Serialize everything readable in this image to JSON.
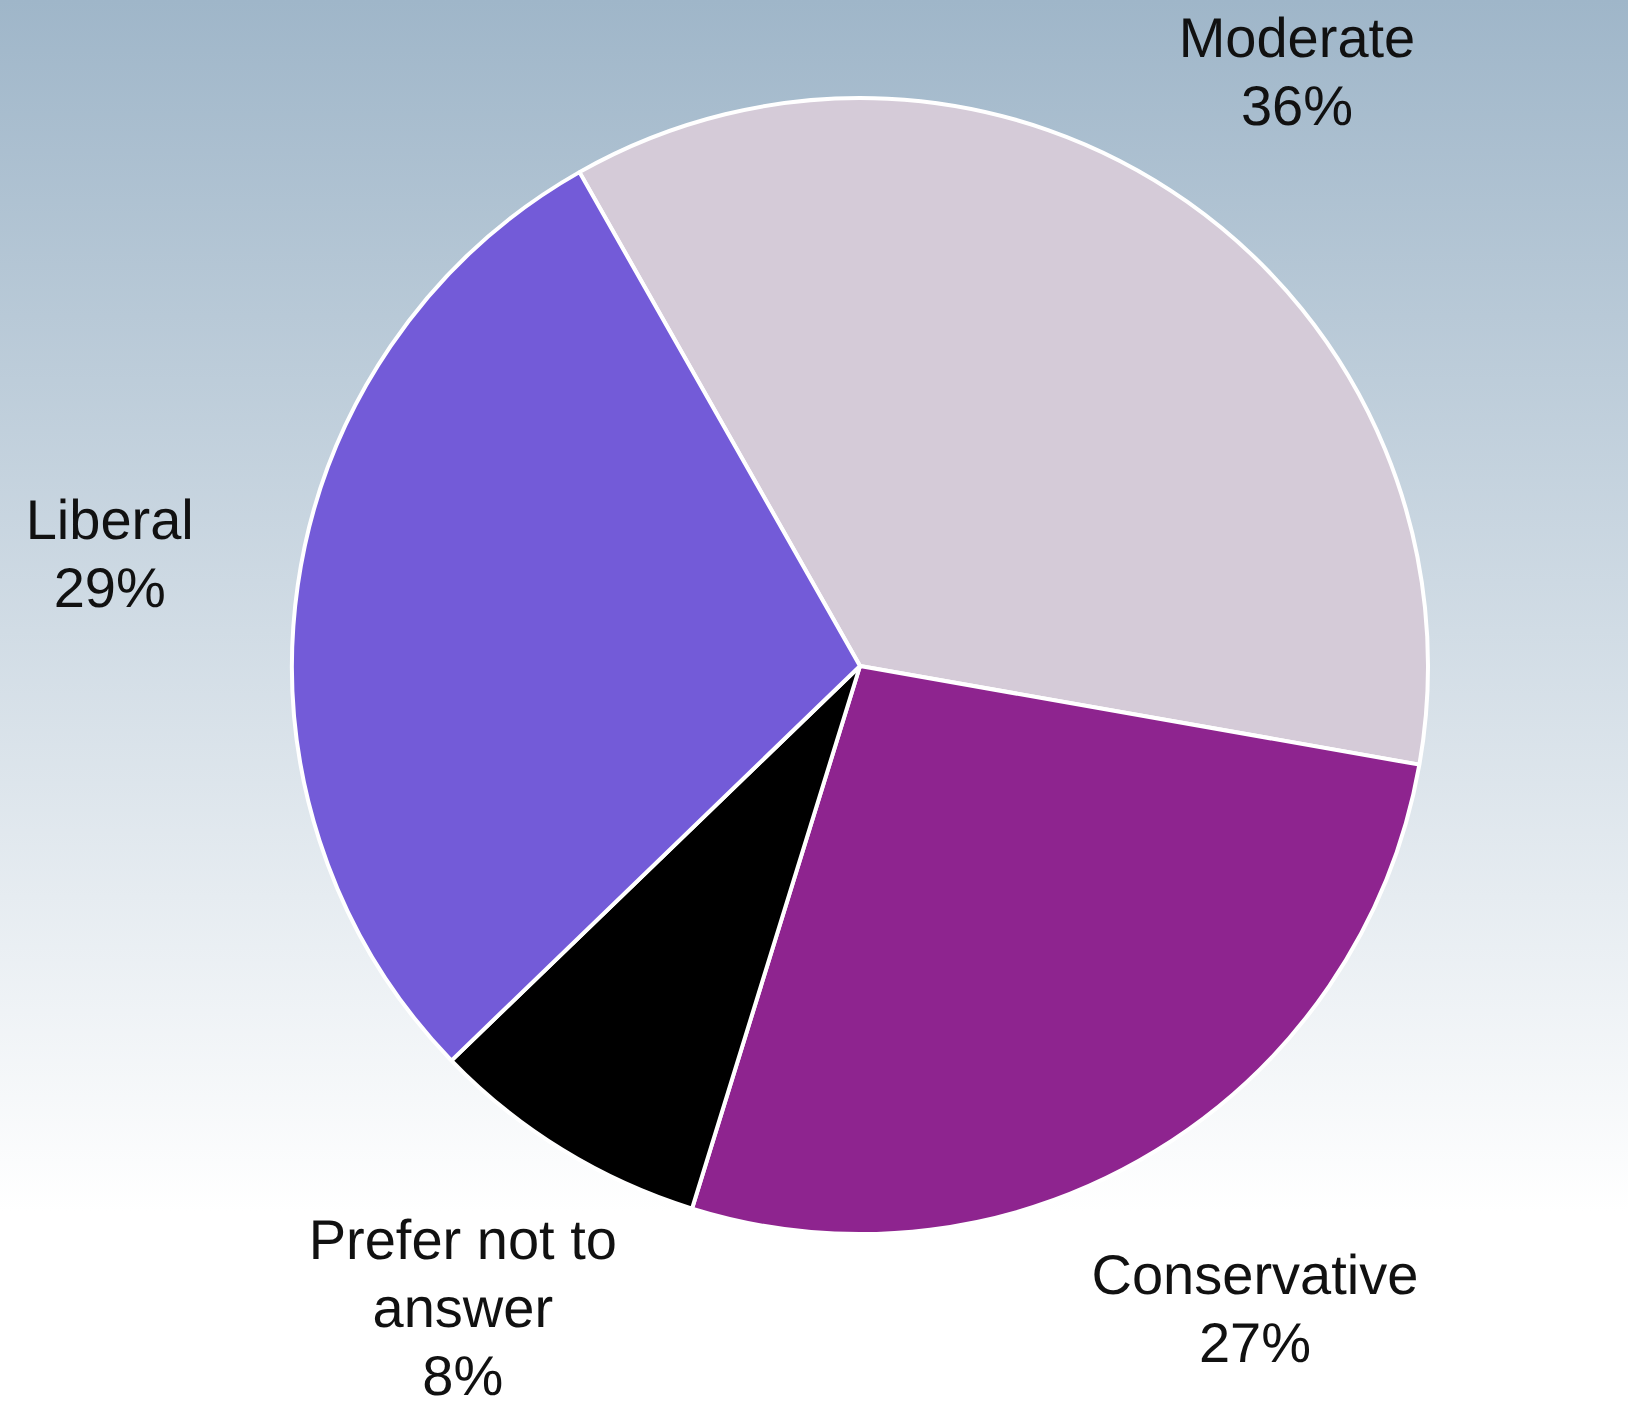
{
  "chart_data": {
    "type": "pie",
    "categories": [
      "Moderate",
      "Conservative",
      "Prefer not to answer",
      "Liberal"
    ],
    "values": [
      36,
      27,
      8,
      29
    ],
    "value_labels": [
      "36%",
      "27%",
      "8%",
      "29%"
    ],
    "colors": [
      "#d5cbd8",
      "#8e248f",
      "#000000",
      "#735bd8"
    ],
    "legend": false
  }
}
